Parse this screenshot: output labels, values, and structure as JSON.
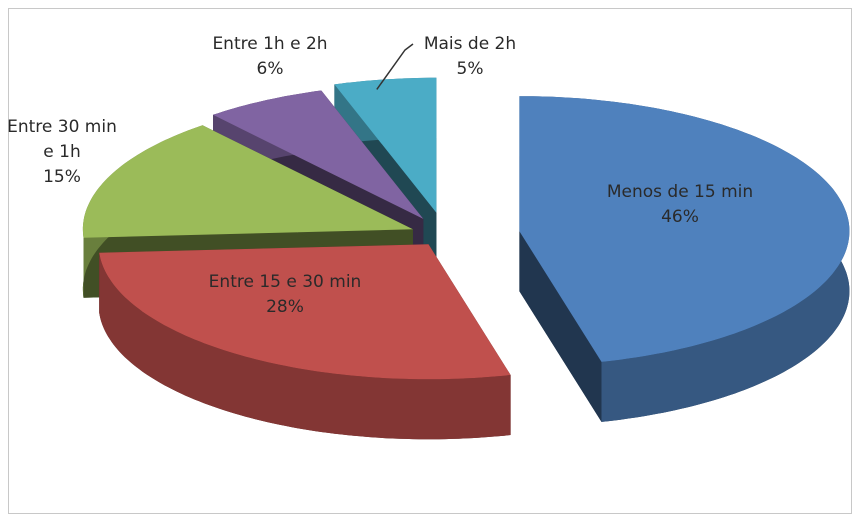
{
  "chart_data": {
    "type": "pie3d",
    "categories": [
      "Menos de 15 min",
      "Entre 15 e 30 min",
      "Entre 30 min e 1h",
      "Entre 1h e 2h",
      "Mais de 2h"
    ],
    "values": [
      46,
      28,
      15,
      6,
      5
    ],
    "value_labels": [
      "46%",
      "28%",
      "15%",
      "6%",
      "5%"
    ],
    "colors": [
      "#4f81bd",
      "#c0504d",
      "#9bbb59",
      "#8064a2",
      "#4bacc6"
    ]
  }
}
